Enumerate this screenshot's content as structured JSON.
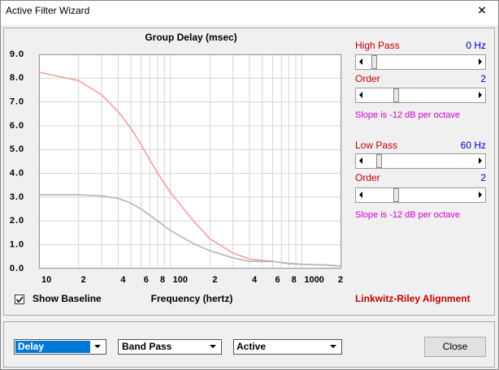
{
  "window": {
    "title": "Active Filter Wizard",
    "close_button": "✕"
  },
  "chart_data": {
    "type": "line",
    "title": "Group Delay (msec)",
    "x_label": "Frequency (hertz)",
    "x": [
      10,
      20,
      30,
      40,
      50,
      60,
      80,
      100,
      150,
      200,
      300,
      400,
      600,
      800,
      1000,
      1500,
      2000
    ],
    "series": [
      {
        "name": "Group Delay",
        "color": "#f4a0a0",
        "values": [
          8.25,
          7.9,
          7.3,
          6.6,
          5.9,
          5.2,
          4.0,
          3.2,
          2.0,
          1.25,
          0.65,
          0.4,
          0.3,
          0.22,
          0.18,
          0.15,
          0.1
        ]
      },
      {
        "name": "Baseline",
        "color": "#b4b4b4",
        "values": [
          3.1,
          3.1,
          3.05,
          2.95,
          2.75,
          2.5,
          2.0,
          1.6,
          1.05,
          0.75,
          0.45,
          0.3,
          0.3,
          0.2,
          0.18,
          0.15,
          0.1
        ]
      }
    ],
    "xlim": [
      10,
      2000
    ],
    "log_x": true,
    "xticks": [
      10,
      {
        "value": 20,
        "label": "2"
      },
      {
        "value": 40,
        "label": "4"
      },
      {
        "value": 60,
        "label": "6"
      },
      {
        "value": 80,
        "label": "8"
      },
      100,
      {
        "value": 200,
        "label": "2"
      },
      {
        "value": 400,
        "label": "4"
      },
      {
        "value": 600,
        "label": "6"
      },
      {
        "value": 800,
        "label": "8"
      },
      1000,
      {
        "value": 2000,
        "label": "2"
      }
    ],
    "x_minor_grid": [
      30,
      50,
      70,
      90,
      300,
      500,
      700,
      900
    ],
    "ylim": [
      0,
      9
    ],
    "yticks": [
      {
        "value": 0,
        "label": "0.0"
      },
      {
        "value": 1,
        "label": "1.0"
      },
      {
        "value": 2,
        "label": "2.0"
      },
      {
        "value": 3,
        "label": "3.0"
      },
      {
        "value": 4,
        "label": "4.0"
      },
      {
        "value": 5,
        "label": "5.0"
      },
      {
        "value": 6,
        "label": "6.0"
      },
      {
        "value": 7,
        "label": "7.0"
      },
      {
        "value": 8,
        "label": "8.0"
      },
      {
        "value": 9,
        "label": "9.0"
      }
    ],
    "grid": true
  },
  "high_pass": {
    "label": "High Pass",
    "value": "0 Hz",
    "order_label": "Order",
    "order": "2",
    "slope": "Slope is -12 dB per octave"
  },
  "low_pass": {
    "label": "Low Pass",
    "value": "60 Hz",
    "order_label": "Order",
    "order": "2",
    "slope": "Slope is -12 dB per octave"
  },
  "show_baseline": "Show Baseline",
  "alignment": "Linkwitz-Riley Alignment",
  "dropdowns": [
    "Delay",
    "Band Pass",
    "Active"
  ],
  "close": "Close"
}
